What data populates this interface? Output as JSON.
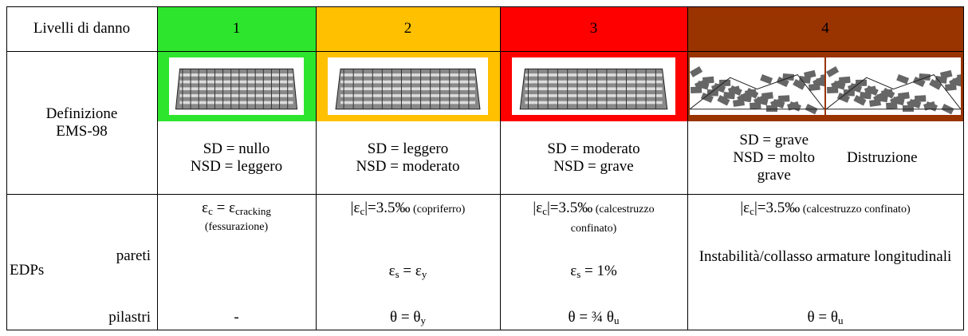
{
  "header": {
    "label": "Livelli di danno",
    "levels": [
      {
        "number": "1",
        "color": "#2ee52e"
      },
      {
        "number": "2",
        "color": "#ffc000"
      },
      {
        "number": "3",
        "color": "#ff0000"
      },
      {
        "number": "4",
        "color": "#993300"
      }
    ]
  },
  "definition": {
    "label": [
      "Definizione",
      "EMS-98"
    ],
    "levels": [
      {
        "lines": [
          "SD = nullo",
          "NSD = leggero"
        ]
      },
      {
        "lines": [
          "SD = leggero",
          "NSD = moderato"
        ]
      },
      {
        "lines": [
          "SD = moderato",
          "NSD = grave"
        ]
      },
      {
        "lines": [
          "SD = grave",
          "NSD = molto",
          "grave"
        ],
        "extra": "Distruzione"
      }
    ]
  },
  "edps": {
    "label": "EDPs",
    "walls_label": "pareti",
    "columns_label": "pilastri",
    "walls": [
      {
        "concrete": [
          [
            {
              "text": "ε"
            },
            {
              "sub": "c"
            },
            {
              "text": " = ε"
            },
            {
              "sub": "cracking"
            }
          ],
          [
            {
              "small": "(fessurazione)"
            }
          ]
        ]
      },
      {
        "concrete": [
          [
            {
              "text": "|ε"
            },
            {
              "sub": "c"
            },
            {
              "text": "|=3.5‰"
            },
            {
              "small": " (copriferro)"
            }
          ]
        ],
        "steel": [
          {
            "text": "ε"
          },
          {
            "sub": "s"
          },
          {
            "text": " = ε"
          },
          {
            "sub": "y"
          }
        ]
      },
      {
        "concrete": [
          [
            {
              "text": "|ε"
            },
            {
              "sub": "c"
            },
            {
              "text": "|=3.5‰"
            },
            {
              "small": " (calcestruzzo"
            }
          ],
          [
            {
              "small": "confinato)"
            }
          ]
        ],
        "steel": [
          {
            "text": "ε"
          },
          {
            "sub": "s"
          },
          {
            "text": " = 1%"
          }
        ]
      },
      {
        "concrete": [
          [
            {
              "text": "|ε"
            },
            {
              "sub": "c"
            },
            {
              "text": "|=3.5‰"
            },
            {
              "small": " (calcestruzzo confinato)"
            }
          ]
        ],
        "steel": [
          {
            "text": "Instabilità/collasso armature longitudinali"
          }
        ]
      }
    ],
    "columns": [
      [
        {
          "text": "-"
        }
      ],
      [
        {
          "text": "θ = θ"
        },
        {
          "sub": "y"
        }
      ],
      [
        {
          "text": "θ = ¾ θ"
        },
        {
          "sub": "u"
        }
      ],
      [
        {
          "text": "θ = θ"
        },
        {
          "sub": "u"
        }
      ]
    ]
  }
}
